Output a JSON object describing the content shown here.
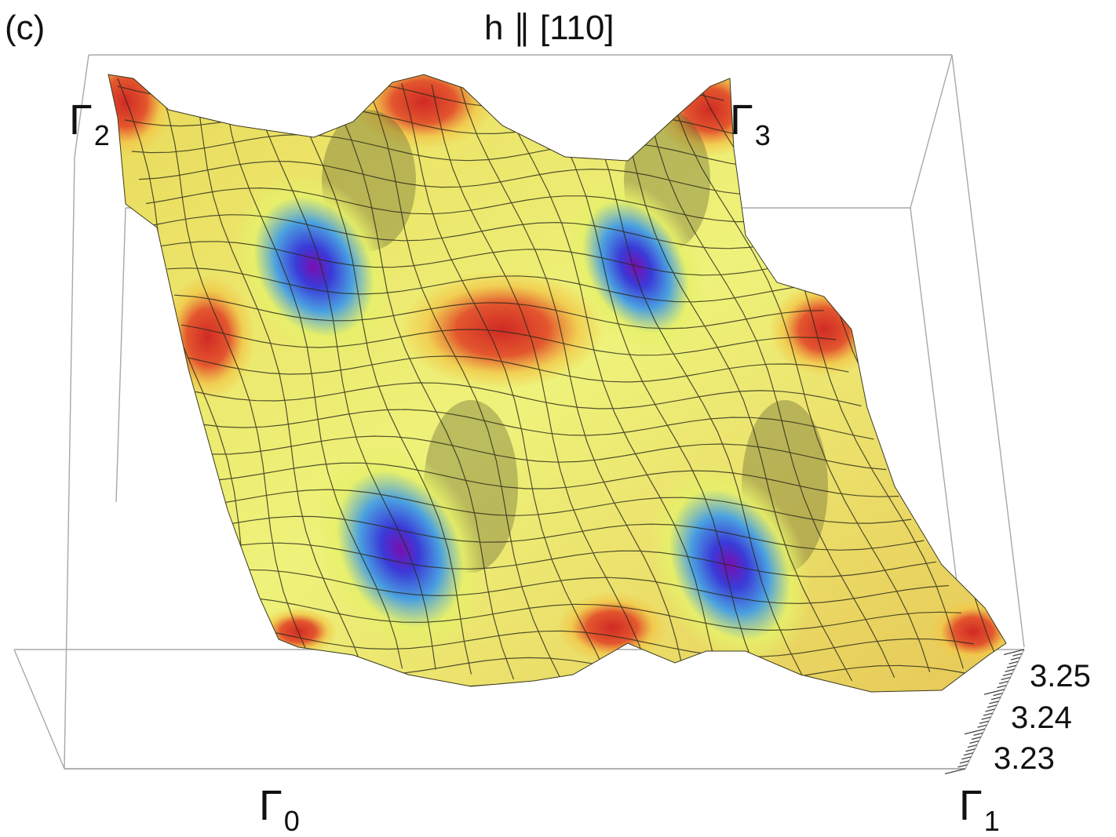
{
  "chart_data": {
    "type": "surface",
    "panel_label": "(c)",
    "title": "h ∥ [110]",
    "corner_labels": {
      "front_left": {
        "symbol": "Γ",
        "sub": "0"
      },
      "front_right": {
        "symbol": "Γ",
        "sub": "1"
      },
      "back_left": {
        "symbol": "Γ",
        "sub": "2"
      },
      "back_right": {
        "symbol": "Γ",
        "sub": "3"
      }
    },
    "z_axis": {
      "ticks": [
        "3.25",
        "3.24",
        "3.23"
      ],
      "range": [
        3.225,
        3.255
      ]
    },
    "surface": {
      "description": "periodic energy landscape over the 2D Brillouin-zone patch spanning Gamma0..Gamma3",
      "colormap": [
        "#7a0fb0",
        "#3a3ad8",
        "#4aa0e0",
        "#e6f06a",
        "#f2c84a",
        "#e3562e",
        "#d02a24"
      ],
      "minima_count": 4,
      "maxima_count": 4
    },
    "box": "on",
    "grid": "mesh"
  }
}
